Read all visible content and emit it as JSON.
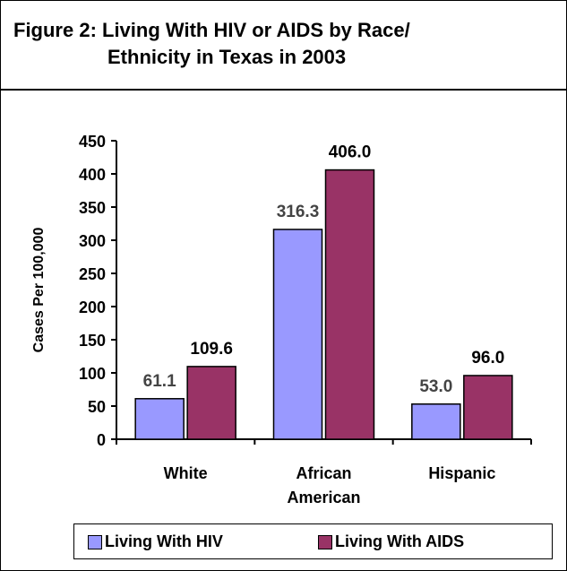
{
  "title": {
    "line1": "Figure 2: Living With HIV or AIDS by Race/",
    "line2": "Ethnicity in Texas in 2003"
  },
  "colors": {
    "hiv": "#9999ff",
    "aids": "#993366"
  },
  "chart_data": {
    "type": "bar",
    "title": "Figure 2: Living With HIV or AIDS by Race/ Ethnicity in Texas in 2003",
    "xlabel": "",
    "ylabel": "Cases Per 100,000",
    "ylim": [
      0,
      450
    ],
    "yticks": [
      0,
      50,
      100,
      150,
      200,
      250,
      300,
      350,
      400,
      450
    ],
    "categories": [
      [
        "White"
      ],
      [
        "African",
        "American"
      ],
      [
        "Hispanic"
      ]
    ],
    "series": [
      {
        "name": "Living With HIV",
        "values": [
          61.1,
          316.3,
          53.0
        ],
        "labels": [
          "61.1",
          "316.3",
          "53.0"
        ]
      },
      {
        "name": "Living With AIDS",
        "values": [
          109.6,
          406.0,
          96.0
        ],
        "labels": [
          "109.6",
          "406.0",
          "96.0"
        ]
      }
    ],
    "legend": "bottom",
    "grid": false
  }
}
